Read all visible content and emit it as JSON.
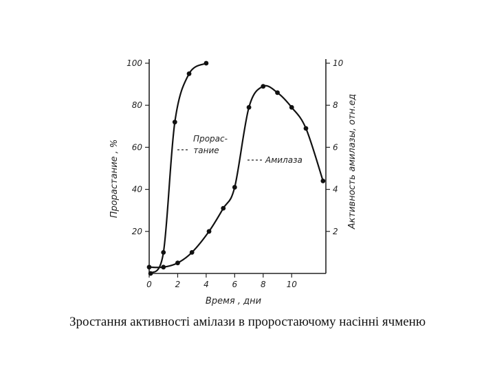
{
  "caption": "Зростання активності амілази в проростаючому насінні ячменю",
  "chart_data": {
    "type": "line",
    "xlabel": "Время , дни",
    "ylabel_left": "Прорастание , %",
    "ylabel_right": "Активность амилазы, отн.ед",
    "xlim": [
      0,
      12.4
    ],
    "ylim_left": [
      0,
      100
    ],
    "ylim_right": [
      0,
      10
    ],
    "x_ticks": [
      0,
      2,
      4,
      6,
      8,
      10
    ],
    "y_left_ticks": [
      20,
      40,
      60,
      80,
      100
    ],
    "y_right_ticks": [
      2,
      4,
      6,
      8,
      10
    ],
    "x_tick_labels": [
      "0",
      "2",
      "4",
      "6",
      "8",
      "10"
    ],
    "y_left_tick_labels": [
      "20",
      "40",
      "60",
      "80",
      "100"
    ],
    "y_right_tick_labels": [
      "2",
      "4",
      "6",
      "8",
      "10"
    ],
    "grid": false,
    "series": [
      {
        "name_lines": [
          "Прорас-",
          "тание"
        ],
        "axis": "left",
        "x": [
          0.1,
          1,
          1.8,
          2.8,
          4
        ],
        "y": [
          0,
          10,
          72,
          95,
          100
        ]
      },
      {
        "name": "Амилаза",
        "axis": "right",
        "x": [
          0,
          1,
          2,
          3,
          4.2,
          5.2,
          6,
          7,
          8,
          9,
          10,
          11,
          12.2
        ],
        "y": [
          0.3,
          0.3,
          0.5,
          1.0,
          2.0,
          3.1,
          4.1,
          7.9,
          8.9,
          8.6,
          7.9,
          6.9,
          4.4
        ]
      }
    ]
  }
}
